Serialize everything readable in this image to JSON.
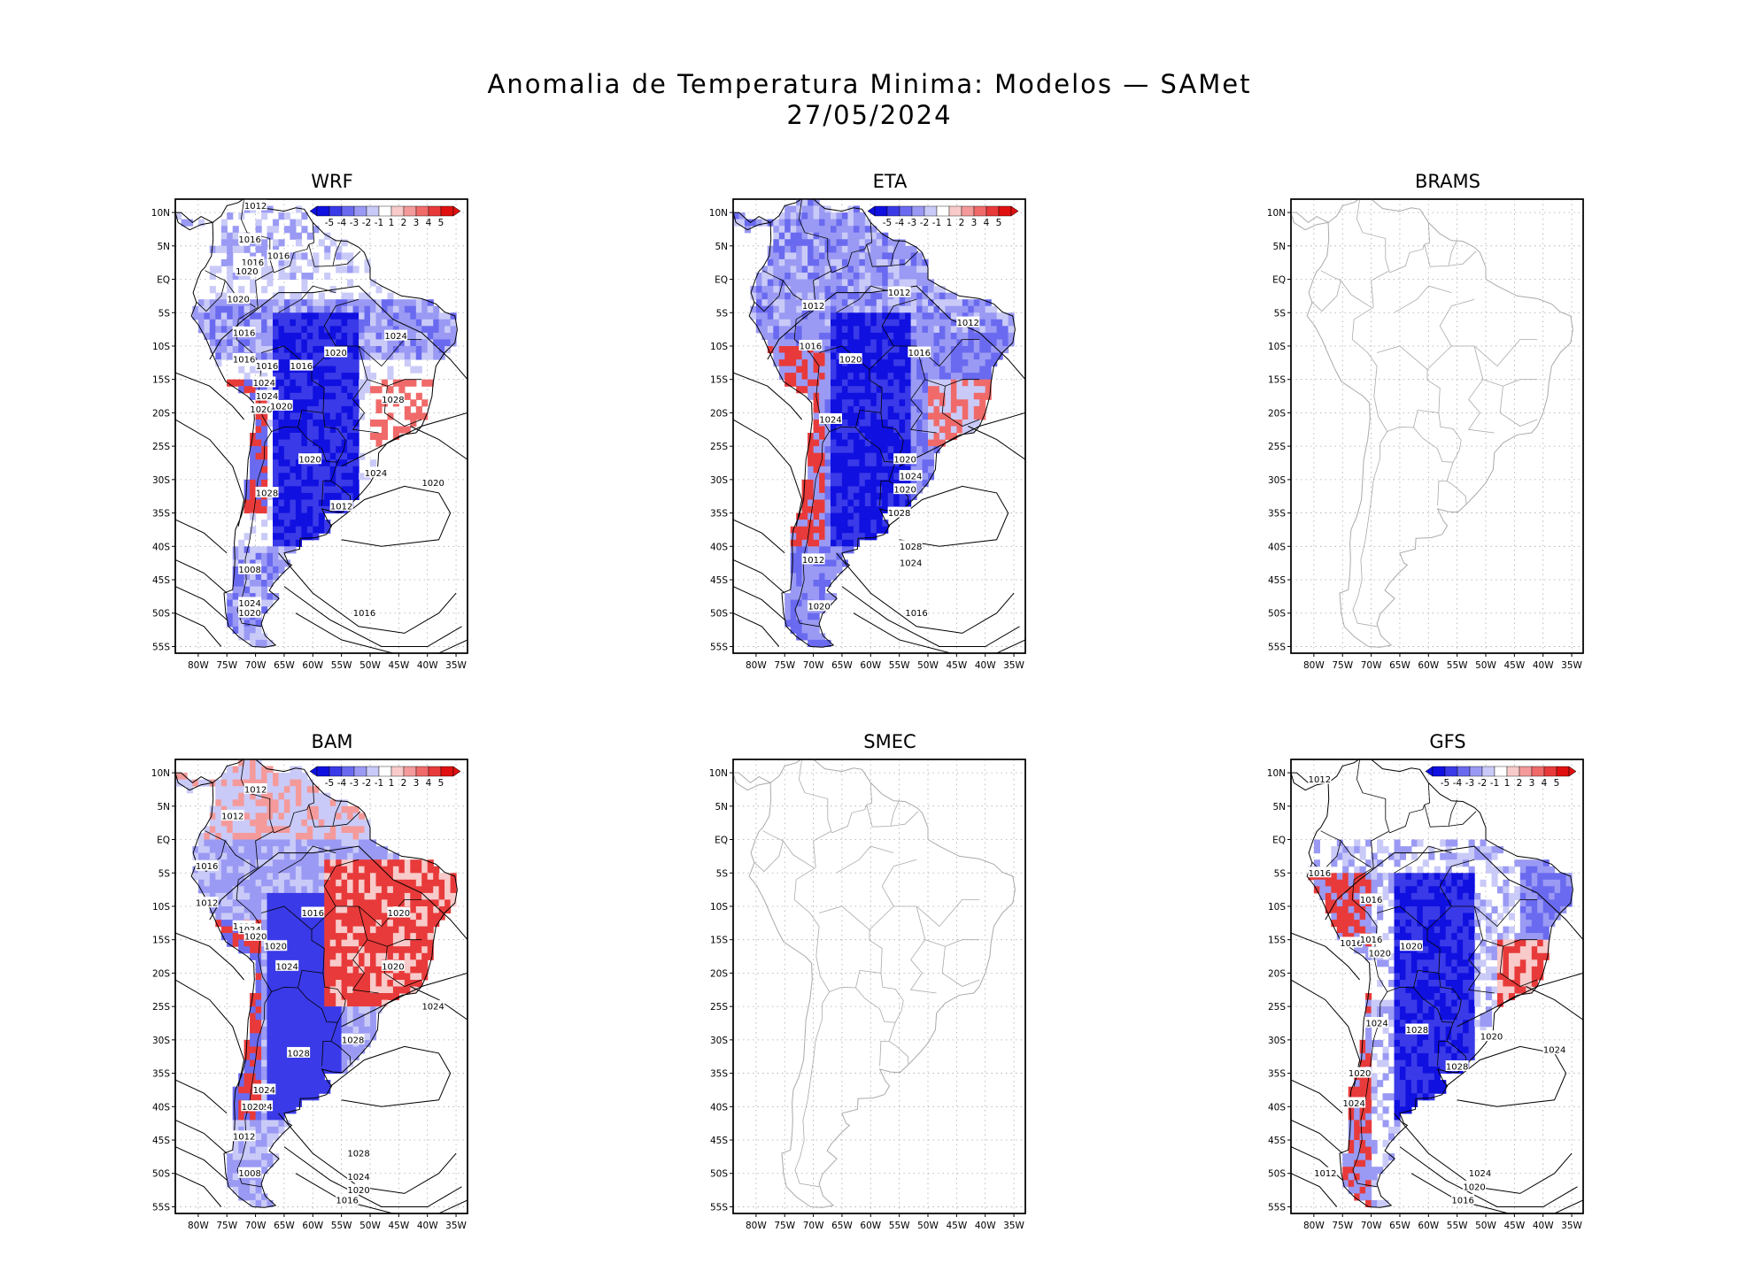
{
  "title": {
    "line1": "Anomalia de Temperatura Minima: Modelos — SAMet",
    "line2": "27/05/2024"
  },
  "axes": {
    "lat_labels": [
      "10N",
      "5N",
      "EQ",
      "5S",
      "10S",
      "15S",
      "20S",
      "25S",
      "30S",
      "35S",
      "40S",
      "45S",
      "50S",
      "55S"
    ],
    "lon_labels": [
      "80W",
      "75W",
      "70W",
      "65W",
      "60W",
      "55W",
      "50W",
      "45W",
      "40W",
      "35W"
    ]
  },
  "colorbar": {
    "labels": [
      "-5",
      "-4",
      "-3",
      "-2",
      "-1",
      "1",
      "2",
      "3",
      "4",
      "5"
    ],
    "colors": [
      "#1010e0",
      "#3a3ae8",
      "#6a6af0",
      "#9a9af4",
      "#cacaf8",
      "#ffffff",
      "#f8caca",
      "#f49a9a",
      "#f06a6a",
      "#e83a3a",
      "#e01010"
    ]
  },
  "colors": {
    "cold": "#1a1ae6",
    "warm": "#e61a1a",
    "coast_empty": "#aaaaaa",
    "coast": "#000000",
    "isobar": "#000000"
  },
  "panels": [
    {
      "name": "WRF",
      "has_data": true,
      "isobars": [
        "1012",
        "1016",
        "1016",
        "1020",
        "1016",
        "1020",
        "1016",
        "1016",
        "1016",
        "1024",
        "1024",
        "1020",
        "1020",
        "1016",
        "1020",
        "1028",
        "1024",
        "1020",
        "1028",
        "1024",
        "1020",
        "1012",
        "1008",
        "1024",
        "1020",
        "1016"
      ]
    },
    {
      "name": "ETA",
      "has_data": true,
      "isobars": [
        "1012",
        "1012",
        "1012",
        "1016",
        "1020",
        "1016",
        "1024",
        "1020",
        "1024",
        "1020",
        "1028",
        "1028",
        "1012",
        "1024",
        "1020",
        "1016"
      ]
    },
    {
      "name": "BRAMS",
      "has_data": false,
      "isobars": []
    },
    {
      "name": "BAM",
      "has_data": true,
      "isobars": [
        "1012",
        "1012",
        "1016",
        "1012",
        "1016",
        "1016",
        "1024",
        "1020",
        "1020",
        "1024",
        "1020",
        "1020",
        "1024",
        "1028",
        "1028",
        "1024",
        "1024",
        "1020",
        "1012",
        "1028",
        "1024",
        "1008",
        "1020",
        "1016"
      ]
    },
    {
      "name": "SMEC",
      "has_data": false,
      "isobars": []
    },
    {
      "name": "GFS",
      "has_data": true,
      "isobars": [
        "1012",
        "1016",
        "1016",
        "1016",
        "1016",
        "1020",
        "1020",
        "1024",
        "1028",
        "1020",
        "1024",
        "1028",
        "1020",
        "1024",
        "1012",
        "1024",
        "1020",
        "1016"
      ]
    }
  ]
}
